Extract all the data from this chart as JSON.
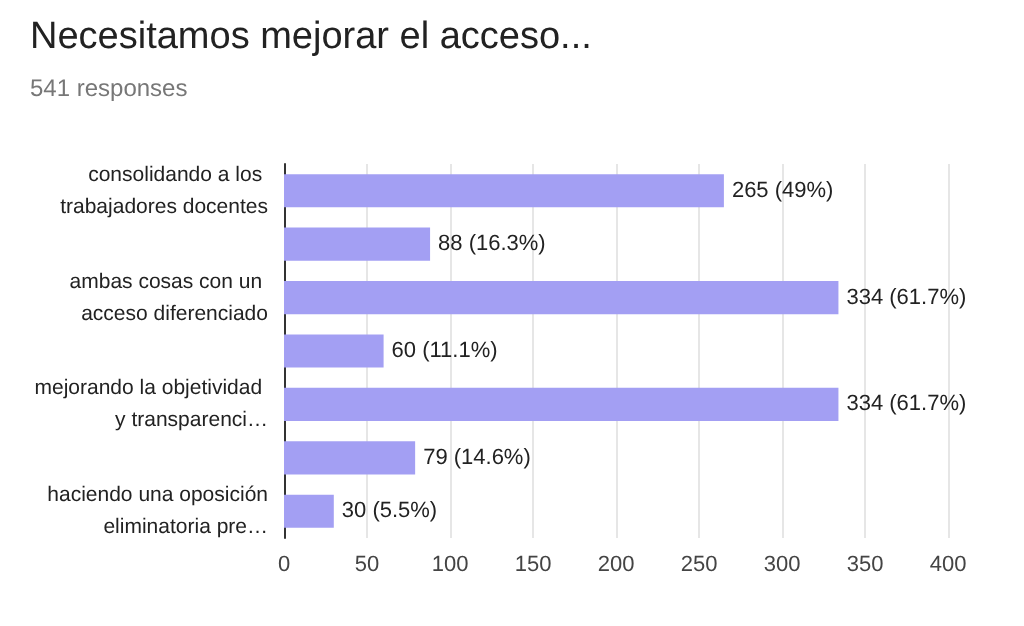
{
  "chart_data": {
    "type": "bar",
    "orientation": "horizontal",
    "title": "Necesitamos mejorar el acceso...",
    "subtitle": "541 responses",
    "categories": [
      "consolidando a los trabajadores docentes",
      null,
      "ambas cosas con un acceso diferenciado",
      null,
      "mejorando la objetividad y transparenci…",
      null,
      "haciendo una oposición eliminatoria pre…"
    ],
    "values": [
      265,
      88,
      334,
      60,
      334,
      79,
      30
    ],
    "value_labels": [
      "265 (49%)",
      "88 (16.3%)",
      "334 (61.7%)",
      "60 (11.1%)",
      "334 (61.7%)",
      "79 (14.6%)",
      "30 (5.5%)"
    ],
    "color": "#a39ff3",
    "xlim": [
      0,
      400
    ],
    "xticks": [
      0,
      50,
      100,
      150,
      200,
      250,
      300,
      350,
      400
    ],
    "grid": "x"
  }
}
